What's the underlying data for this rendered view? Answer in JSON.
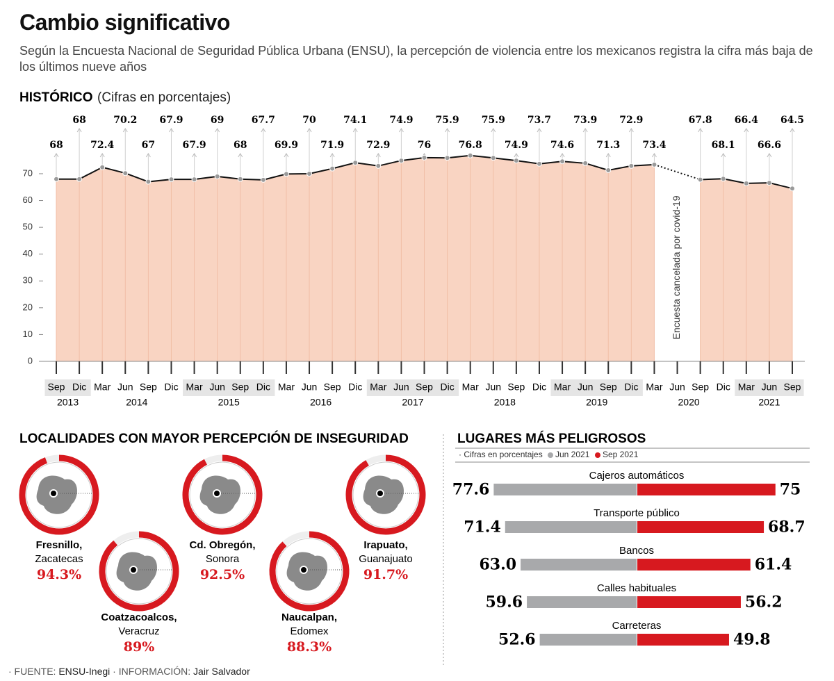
{
  "header": {
    "title": "Cambio significativo",
    "subtitle": "Según la Encuesta Nacional de Seguridad Pública Urbana (ENSU), la percepción de violencia entre los mexicanos registra la cifra más baja de los últimos nueve años"
  },
  "chart_data": [
    {
      "type": "line",
      "title": "HISTÓRICO",
      "subtitle": "(Cifras en porcentajes)",
      "categories": [
        "Sep",
        "Dic",
        "Mar",
        "Jun",
        "Sep",
        "Dic",
        "Mar",
        "Jun",
        "Sep",
        "Dic",
        "Mar",
        "Jun",
        "Sep",
        "Dic",
        "Mar",
        "Jun",
        "Sep",
        "Dic",
        "Mar",
        "Jun",
        "Sep",
        "Dic",
        "Mar",
        "Jun",
        "Sep",
        "Dic",
        "Mar",
        "Jun",
        "Sep",
        "Dic",
        "Mar",
        "Jun",
        "Sep"
      ],
      "year_labels": [
        "2013",
        null,
        "2014",
        null,
        null,
        null,
        "2015",
        null,
        null,
        null,
        "2016",
        null,
        null,
        null,
        "2017",
        null,
        null,
        null,
        "2018",
        null,
        null,
        null,
        "2019",
        null,
        null,
        null,
        "2020",
        null,
        null,
        null,
        "2021",
        null,
        null
      ],
      "values": [
        68,
        68,
        72.4,
        70.2,
        67,
        67.9,
        67.9,
        69,
        68,
        67.7,
        69.9,
        70,
        71.9,
        74.1,
        72.9,
        74.9,
        76,
        75.9,
        76.8,
        75.9,
        74.9,
        73.7,
        74.6,
        73.9,
        71.3,
        72.9,
        73.4,
        null,
        67.8,
        68.1,
        66.4,
        66.6,
        64.5
      ],
      "color": "#111111",
      "fill": "#f9d4c2",
      "ylim": [
        0,
        80
      ],
      "yticks": [
        0,
        10,
        20,
        30,
        40,
        50,
        60,
        70
      ],
      "annotation": "Encuesta cancelada por covid-19"
    },
    {
      "type": "ring",
      "title": "LOCALIDADES CON MAYOR PERCEPCIÓN DE INSEGURIDAD",
      "categories": [
        "Fresnillo,",
        "Coatzacoalcos,",
        "Cd. Obregón,",
        "Naucalpan,",
        "Irapuato,"
      ],
      "sublabels": [
        "Zacatecas",
        "Veracruz",
        "Sonora",
        "Edomex",
        "Guanajuato"
      ],
      "values": [
        94.3,
        89,
        92.5,
        88.3,
        91.7
      ],
      "value_labels": [
        "94.3%",
        "89%",
        "92.5%",
        "88.3%",
        "91.7%"
      ],
      "ylim": [
        0,
        100
      ],
      "color": "#d7191f"
    },
    {
      "type": "bar",
      "title": "LUGARES MÁS PELIGROSOS",
      "note": "· Cifras en porcentajes",
      "categories": [
        "Cajeros automáticos",
        "Transporte público",
        "Bancos",
        "Calles habituales",
        "Carreteras"
      ],
      "series": [
        {
          "name": "Jun 2021",
          "color": "#a8a9ab",
          "values": [
            77.6,
            71.4,
            63.0,
            59.6,
            52.6
          ],
          "value_labels": [
            "77.6",
            "71.4",
            "63.0",
            "59.6",
            "52.6"
          ]
        },
        {
          "name": "Sep 2021",
          "color": "#d7191f",
          "values": [
            75,
            68.7,
            61.4,
            56.2,
            49.8
          ]
        }
      ]
    }
  ],
  "footer": {
    "source_label": "· FUENTE:",
    "source": "ENSU-Inegi",
    "info_label": "· INFORMACIÓN:",
    "info": "Jair Salvador"
  }
}
